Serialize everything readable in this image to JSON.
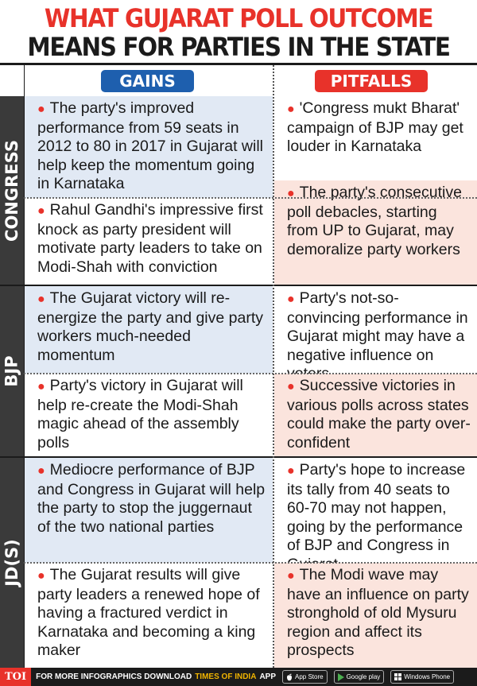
{
  "title_line1": "WHAT GUJARAT POLL OUTCOME",
  "title_line2": "MEANS FOR PARTIES IN THE STATE",
  "headers": {
    "gains": "GAINS",
    "pitfalls": "PITFALLS"
  },
  "groups": [
    {
      "label": "CONGRESS",
      "gains": [
        "The party's improved performance from 59 seats in 2012 to 80 in 2017 in Gujarat will help keep the momentum going in Karnataka",
        "Rahul Gandhi's impressive first knock as party president will motivate party leaders to take on Modi-Shah with conviction"
      ],
      "pitfalls": [
        "'Congress mukt Bharat' campaign of BJP may get louder in Karnataka",
        "The party's consecutive poll debacles, starting from UP to Gujarat, may demoralize party workers"
      ]
    },
    {
      "label": "BJP",
      "gains": [
        "The Gujarat victory will re-energize the party and give party workers much-needed momentum",
        "Party's victory in Gujarat will help re-create the Modi-Shah magic ahead of the assembly polls"
      ],
      "pitfalls": [
        "Party's not-so-convincing performance in Gujarat might may have a negative influence on voters",
        "Successive victories in various polls across states could make the party over-confident"
      ]
    },
    {
      "label": "JD(S)",
      "gains": [
        "Mediocre performance of BJP and Congress in Gujarat will help the party to stop the juggernaut of the two national parties",
        "The Gujarat results will give party leaders a renewed hope of having a fractured verdict in Karnataka and becoming a king maker"
      ],
      "pitfalls": [
        "Party's hope to increase its tally from 40 seats to 60-70 may not happen, going by the performance of BJP and Congress in Gujarat",
        "The Modi wave may have an influence on party stronghold of old Mysuru region and affect its prospects"
      ]
    }
  ],
  "footer": {
    "logo": "TOI",
    "text": "FOR MORE INFOGRAPHICS DOWNLOAD",
    "brand": "TIMES OF INDIA",
    "app": "APP",
    "stores": [
      "App Store",
      "Google play",
      "Windows Phone"
    ]
  },
  "colors": {
    "accent_red": "#e8322a",
    "accent_blue": "#1e5fae",
    "gains_bg": "#e1e9f4",
    "pitfalls_bg": "#fbe4dd"
  }
}
